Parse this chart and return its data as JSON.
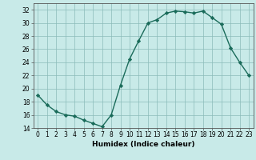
{
  "x": [
    0,
    1,
    2,
    3,
    4,
    5,
    6,
    7,
    8,
    9,
    10,
    11,
    12,
    13,
    14,
    15,
    16,
    17,
    18,
    19,
    20,
    21,
    22,
    23
  ],
  "y": [
    19,
    17.5,
    16.5,
    16,
    15.8,
    15.2,
    14.7,
    14.2,
    16,
    20.5,
    24.5,
    27.3,
    30,
    30.5,
    31.5,
    31.8,
    31.7,
    31.5,
    31.8,
    30.8,
    29.8,
    26.2,
    24,
    22
  ],
  "line_color": "#1a6b5a",
  "bg_color": "#c8eae8",
  "grid_color": "#8bbcba",
  "xlabel": "Humidex (Indice chaleur)",
  "ylim": [
    14,
    33
  ],
  "xlim": [
    -0.5,
    23.5
  ],
  "yticks": [
    14,
    16,
    18,
    20,
    22,
    24,
    26,
    28,
    30,
    32
  ],
  "xticks": [
    0,
    1,
    2,
    3,
    4,
    5,
    6,
    7,
    8,
    9,
    10,
    11,
    12,
    13,
    14,
    15,
    16,
    17,
    18,
    19,
    20,
    21,
    22,
    23
  ],
  "tick_fontsize": 5.5,
  "xlabel_fontsize": 6.5
}
